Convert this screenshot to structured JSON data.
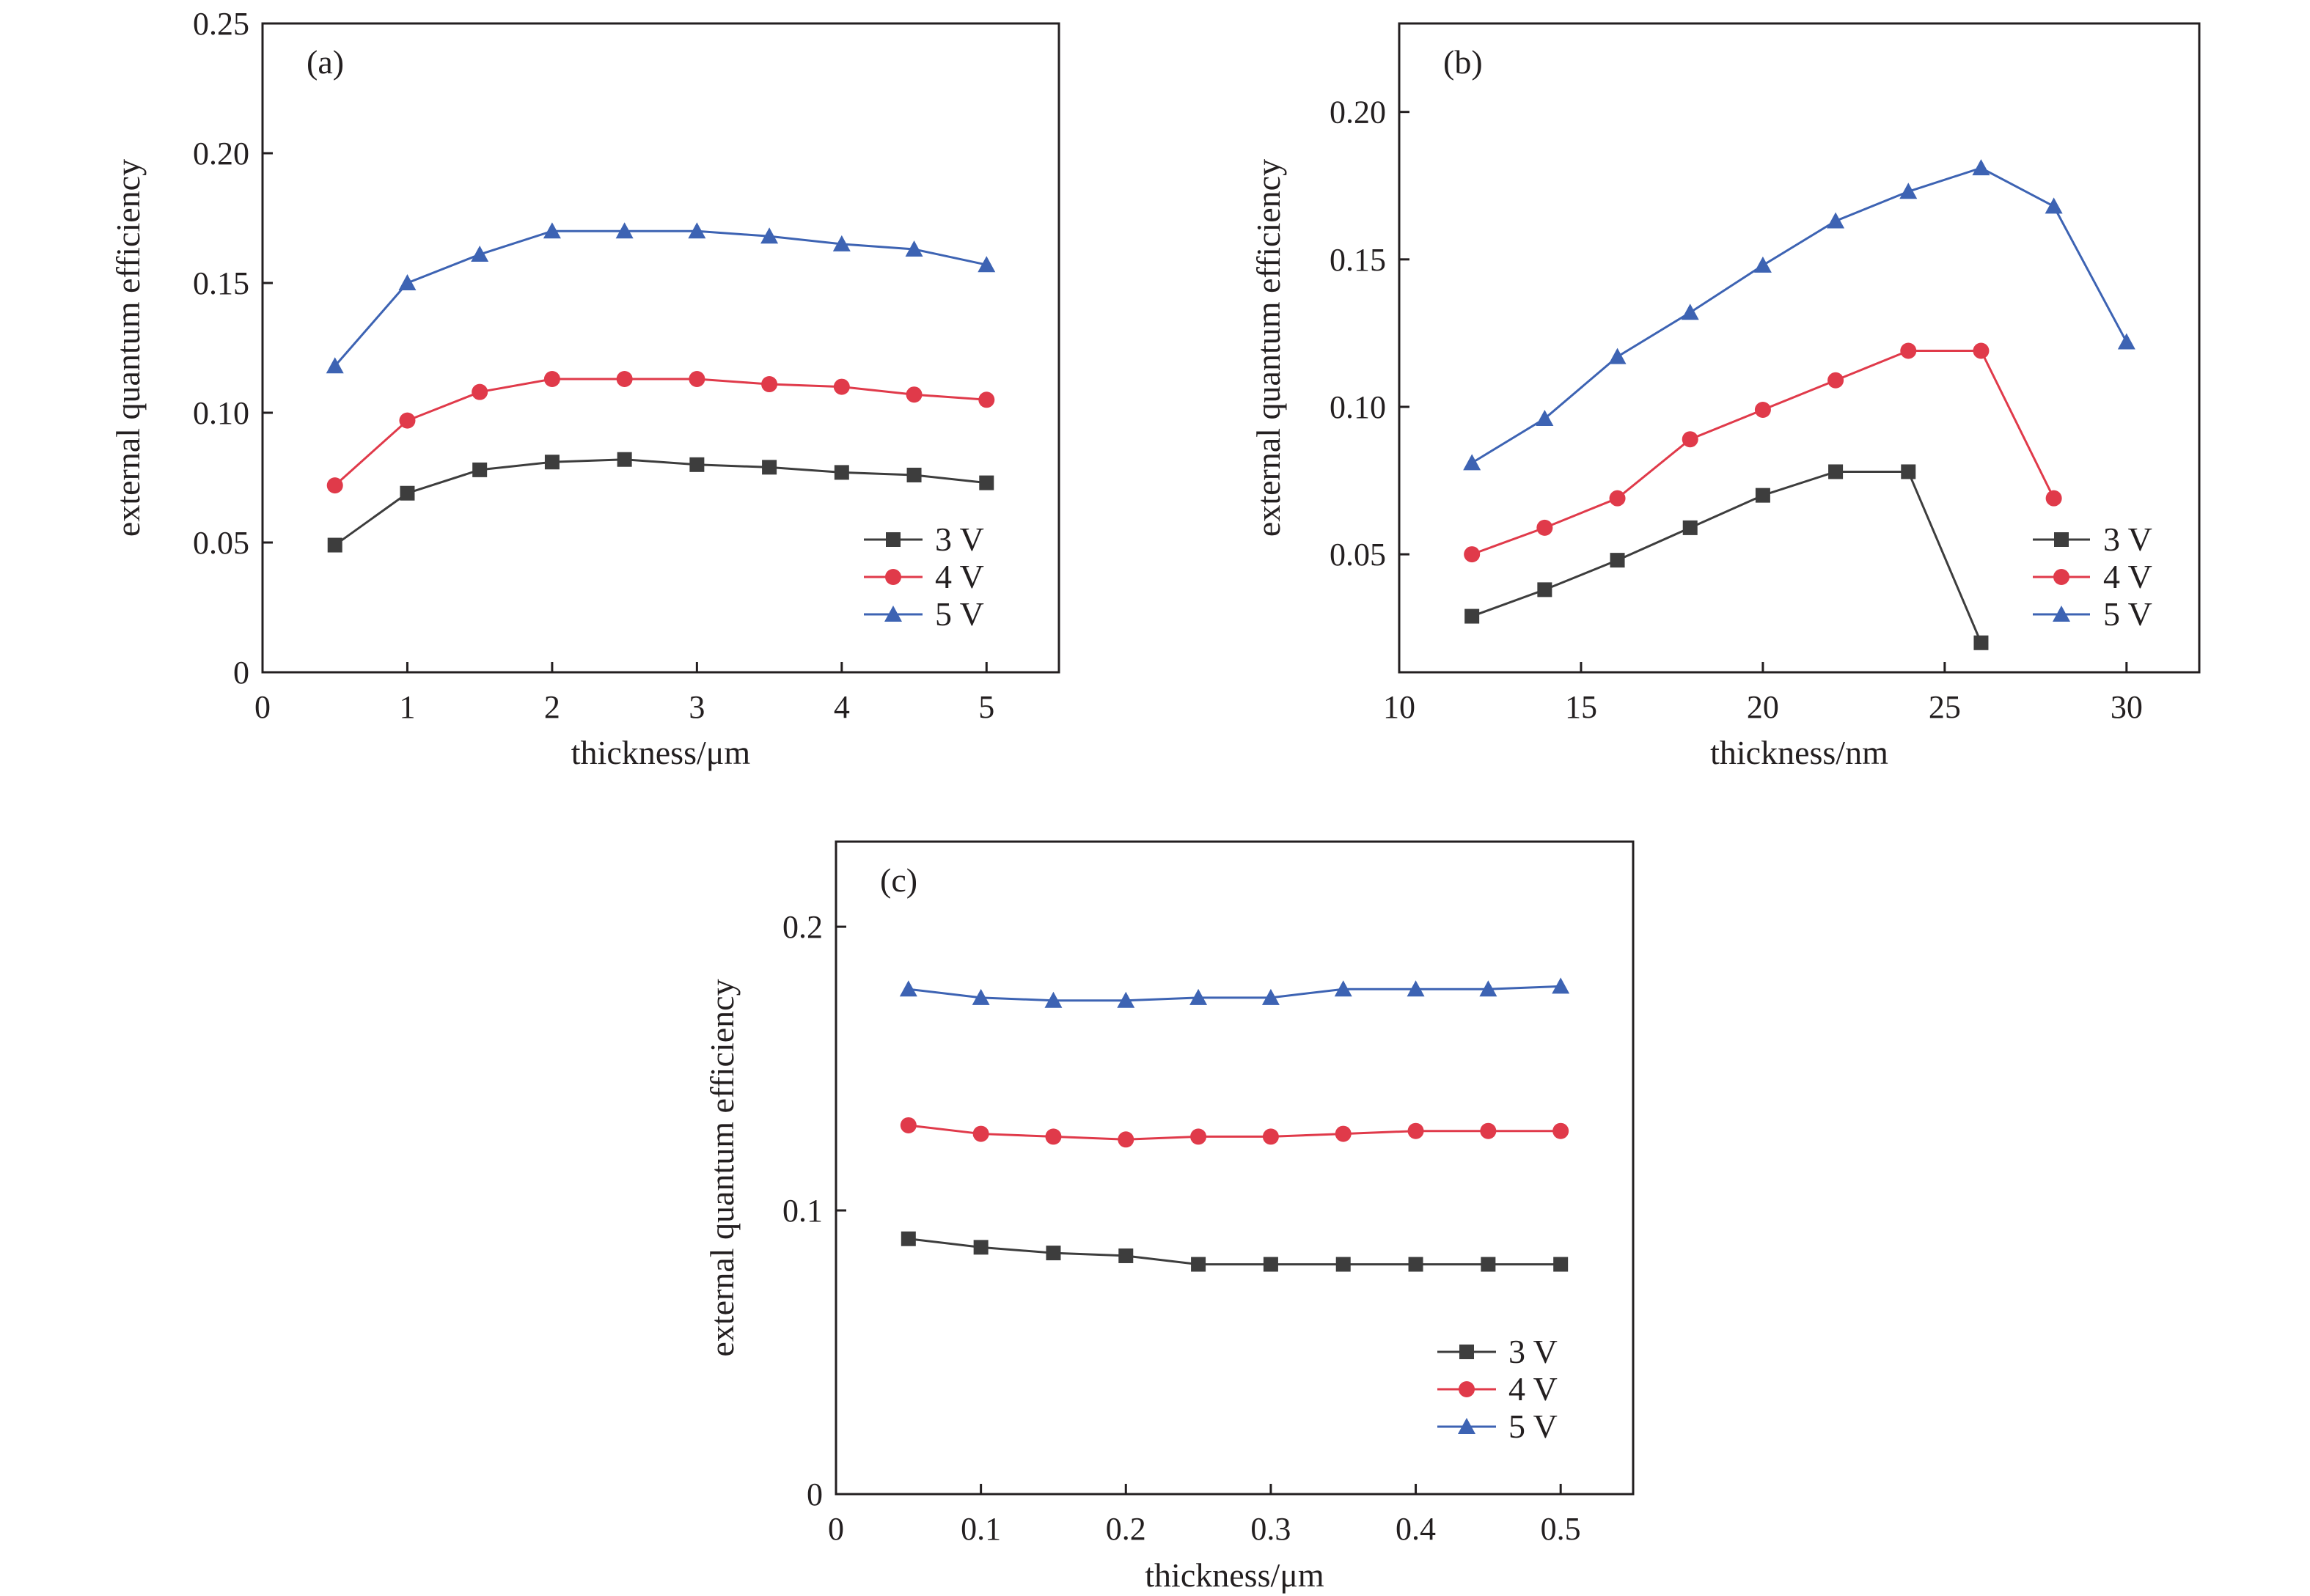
{
  "colors": {
    "3V": "#3d3d3d",
    "4V": "#e03a4a",
    "5V": "#3d63b3",
    "axis": "#231f20"
  },
  "chart_data": [
    {
      "type": "line",
      "panel": "(a)",
      "xlabel": "thickness/μm",
      "ylabel": "external quantum efficiency",
      "xlim": [
        0,
        5.5
      ],
      "ylim": [
        0,
        0.25
      ],
      "xticks": [
        0,
        1,
        2,
        3,
        4,
        5
      ],
      "xtick_labels": [
        "0",
        "1",
        "2",
        "3",
        "4",
        "5"
      ],
      "yticks": [
        0,
        0.05,
        0.1,
        0.15,
        0.2,
        0.25
      ],
      "ytick_labels": [
        "0",
        "0.05",
        "0.10",
        "0.15",
        "0.20",
        "0.25"
      ],
      "legend_position": "bottom-right",
      "series": [
        {
          "name": "3 V",
          "marker": "square",
          "color_key": "3V",
          "x": [
            0.5,
            1,
            1.5,
            2,
            2.5,
            3,
            3.5,
            4,
            4.5,
            5
          ],
          "y": [
            0.049,
            0.069,
            0.078,
            0.081,
            0.082,
            0.08,
            0.079,
            0.077,
            0.076,
            0.073
          ]
        },
        {
          "name": "4 V",
          "marker": "circle",
          "color_key": "4V",
          "x": [
            0.5,
            1,
            1.5,
            2,
            2.5,
            3,
            3.5,
            4,
            4.5,
            5
          ],
          "y": [
            0.072,
            0.097,
            0.108,
            0.113,
            0.113,
            0.113,
            0.111,
            0.11,
            0.107,
            0.105
          ]
        },
        {
          "name": "5 V",
          "marker": "triangle",
          "color_key": "5V",
          "x": [
            0.5,
            1,
            1.5,
            2,
            2.5,
            3,
            3.5,
            4,
            4.5,
            5
          ],
          "y": [
            0.118,
            0.15,
            0.161,
            0.17,
            0.17,
            0.17,
            0.168,
            0.165,
            0.163,
            0.157
          ]
        }
      ]
    },
    {
      "type": "line",
      "panel": "(b)",
      "xlabel": "thickness/nm",
      "ylabel": "external quantum efficiency",
      "xlim": [
        10,
        32
      ],
      "ylim": [
        0.01,
        0.23
      ],
      "xticks": [
        10,
        15,
        20,
        25,
        30
      ],
      "xtick_labels": [
        "10",
        "15",
        "20",
        "25",
        "30"
      ],
      "yticks": [
        0.05,
        0.1,
        0.15,
        0.2
      ],
      "ytick_labels": [
        "0.05",
        "0.10",
        "0.15",
        "0.20"
      ],
      "legend_position": "bottom-right",
      "series": [
        {
          "name": "3 V",
          "marker": "square",
          "color_key": "3V",
          "x": [
            12,
            14,
            16,
            18,
            20,
            22,
            24,
            26
          ],
          "y": [
            0.029,
            0.038,
            0.048,
            0.059,
            0.07,
            0.078,
            0.078,
            0.02
          ]
        },
        {
          "name": "4 V",
          "marker": "circle",
          "color_key": "4V",
          "x": [
            12,
            14,
            16,
            18,
            20,
            22,
            24,
            26,
            28
          ],
          "y": [
            0.05,
            0.059,
            0.069,
            0.089,
            0.099,
            0.109,
            0.119,
            0.119,
            0.069
          ]
        },
        {
          "name": "5 V",
          "marker": "triangle",
          "color_key": "5V",
          "x": [
            12,
            14,
            16,
            18,
            20,
            22,
            24,
            26,
            28,
            30
          ],
          "y": [
            0.081,
            0.096,
            0.117,
            0.132,
            0.148,
            0.163,
            0.173,
            0.181,
            0.168,
            0.122
          ]
        }
      ]
    },
    {
      "type": "line",
      "panel": "(c)",
      "xlabel": "thickness/μm",
      "ylabel": "external quantum efficiency",
      "xlim": [
        0,
        0.55
      ],
      "ylim": [
        0,
        0.23
      ],
      "xticks": [
        0,
        0.1,
        0.2,
        0.3,
        0.4,
        0.5
      ],
      "xtick_labels": [
        "0",
        "0.1",
        "0.2",
        "0.3",
        "0.4",
        "0.5"
      ],
      "yticks": [
        0,
        0.1,
        0.2
      ],
      "ytick_labels": [
        "0",
        "0.1",
        "0.2"
      ],
      "legend_position": "bottom-right",
      "series": [
        {
          "name": "3 V",
          "marker": "square",
          "color_key": "3V",
          "x": [
            0.05,
            0.1,
            0.15,
            0.2,
            0.25,
            0.3,
            0.35,
            0.4,
            0.45,
            0.5
          ],
          "y": [
            0.09,
            0.087,
            0.085,
            0.084,
            0.081,
            0.081,
            0.081,
            0.081,
            0.081,
            0.081
          ]
        },
        {
          "name": "4 V",
          "marker": "circle",
          "color_key": "4V",
          "x": [
            0.05,
            0.1,
            0.15,
            0.2,
            0.25,
            0.3,
            0.35,
            0.4,
            0.45,
            0.5
          ],
          "y": [
            0.13,
            0.127,
            0.126,
            0.125,
            0.126,
            0.126,
            0.127,
            0.128,
            0.128,
            0.128
          ]
        },
        {
          "name": "5 V",
          "marker": "triangle",
          "color_key": "5V",
          "x": [
            0.05,
            0.1,
            0.15,
            0.2,
            0.25,
            0.3,
            0.35,
            0.4,
            0.45,
            0.5
          ],
          "y": [
            0.178,
            0.175,
            0.174,
            0.174,
            0.175,
            0.175,
            0.178,
            0.178,
            0.178,
            0.179
          ]
        }
      ]
    }
  ]
}
